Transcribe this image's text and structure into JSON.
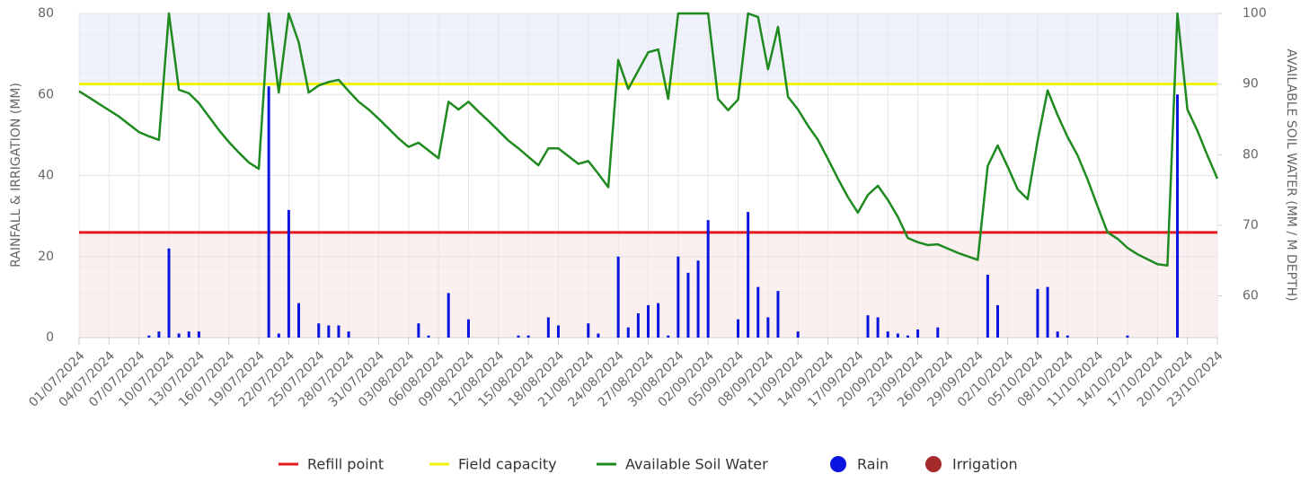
{
  "chart_data": {
    "type": "combo",
    "ylabel": "RAINFALL & IRRIGATION (MM)",
    "y2label": "AVAILABLE SOIL WATER (MM / M DEPTH)",
    "ylim": [
      0,
      80
    ],
    "yticks": [
      0,
      20,
      40,
      60,
      80
    ],
    "y2lim": [
      54.1,
      100
    ],
    "y2ticks": [
      60,
      70,
      80,
      90,
      100
    ],
    "grid": true,
    "legend": "bottom",
    "categories": [
      "01/07/2024",
      null,
      null,
      "04/07/2024",
      null,
      null,
      "07/07/2024",
      null,
      null,
      "10/07/2024",
      null,
      null,
      "13/07/2024",
      null,
      null,
      "16/07/2024",
      null,
      null,
      "19/07/2024",
      null,
      null,
      "22/07/2024",
      null,
      null,
      "25/07/2024",
      null,
      null,
      "28/07/2024",
      null,
      null,
      "31/07/2024",
      null,
      null,
      "03/08/2024",
      null,
      null,
      "06/08/2024",
      null,
      null,
      "09/08/2024",
      null,
      null,
      "12/08/2024",
      null,
      null,
      "15/08/2024",
      null,
      null,
      "18/08/2024",
      null,
      null,
      "21/08/2024",
      null,
      null,
      "24/08/2024",
      null,
      null,
      "27/08/2024",
      null,
      null,
      "30/08/2024",
      null,
      null,
      "02/09/2024",
      null,
      null,
      "05/09/2024",
      null,
      null,
      "08/09/2024",
      null,
      null,
      "11/09/2024",
      null,
      null,
      "14/09/2024",
      null,
      null,
      "17/09/2024",
      null,
      null,
      "20/09/2024",
      null,
      null,
      "23/09/2024",
      null,
      null,
      "26/09/2024",
      null,
      null,
      "29/09/2024",
      null,
      null,
      "02/10/2024",
      null,
      null,
      "05/10/2024",
      null,
      null,
      "08/10/2024",
      null,
      null,
      "11/10/2024",
      null,
      null,
      "14/10/2024",
      null,
      null,
      "17/10/2024",
      null,
      null,
      "20/10/2024",
      null,
      null,
      "23/10/2024"
    ],
    "reference_lines": [
      {
        "name": "Refill point",
        "value": 69,
        "axis": "y2",
        "color": "#e31a1c"
      },
      {
        "name": "Field capacity",
        "value": 90,
        "axis": "y2",
        "color": "#f2f20a"
      }
    ],
    "series": [
      {
        "name": "Available Soil Water",
        "type": "line",
        "axis": "y2",
        "color": "#1f8a1f",
        "values": [
          89,
          88.1,
          87.2,
          86.3,
          85.4,
          84.3,
          83.2,
          82.6,
          82.1,
          100,
          89.2,
          88.7,
          87.3,
          85.4,
          83.5,
          81.8,
          80.3,
          78.9,
          78,
          100,
          88.8,
          100,
          95.9,
          88.8,
          89.8,
          90.3,
          90.6,
          89,
          87.5,
          86.4,
          85.1,
          83.7,
          82.3,
          81.1,
          81.7,
          80.6,
          79.5,
          87.5,
          86.4,
          87.5,
          86.1,
          84.8,
          83.4,
          82,
          80.9,
          79.7,
          78.5,
          80.9,
          80.9,
          79.8,
          78.7,
          79.1,
          77.3,
          75.4,
          93.4,
          89.3,
          91.9,
          94.5,
          94.9,
          87.9,
          100,
          100,
          100,
          100,
          87.9,
          86.3,
          87.8,
          100,
          99.5,
          92.1,
          98.1,
          88.2,
          86.4,
          84.1,
          82.1,
          79.4,
          76.6,
          74,
          71.8,
          74.3,
          75.6,
          73.6,
          71.2,
          68.2,
          67.6,
          67.2,
          67.3,
          66.7,
          66.1,
          65.6,
          65.1,
          78.4,
          81.3,
          78.3,
          75.1,
          73.7,
          82,
          89.1,
          85.6,
          82.5,
          79.9,
          76.5,
          72.7,
          69,
          68.1,
          66.8,
          65.9,
          65.2,
          64.5,
          64.3,
          100,
          86.4,
          83.4,
          79.9,
          76.6
        ]
      },
      {
        "name": "Rain",
        "type": "bar",
        "axis": "y",
        "color": "#0a14e0",
        "values": [
          0,
          0,
          0,
          0,
          0,
          0,
          0,
          0.5,
          1.5,
          22,
          1,
          1.5,
          1.5,
          0,
          0,
          0,
          0,
          0,
          0,
          62,
          1,
          31.5,
          8.5,
          0,
          3.5,
          3,
          3,
          1.5,
          0,
          0,
          0,
          0,
          0,
          0,
          3.5,
          0.5,
          0,
          11,
          0,
          4.5,
          0,
          0,
          0,
          0,
          0.5,
          0.5,
          0,
          5,
          3,
          0,
          0,
          3.5,
          1,
          0,
          20,
          2.5,
          6,
          8,
          8.5,
          0.5,
          20,
          16,
          19,
          29,
          0,
          0,
          4.5,
          31,
          12.5,
          5,
          11.5,
          0,
          1.5,
          0,
          0,
          0,
          0,
          0,
          0,
          5.5,
          5,
          1.5,
          1,
          0.5,
          2,
          0,
          2.5,
          0,
          0,
          0,
          0,
          15.5,
          8,
          0,
          0,
          0,
          12,
          12.5,
          1.5,
          0.5,
          0,
          0,
          0,
          0,
          0,
          0.5,
          0,
          0,
          0,
          0,
          60,
          0,
          0,
          0,
          0
        ]
      },
      {
        "name": "Irrigation",
        "type": "bar",
        "axis": "y",
        "color": "#a52a2a",
        "values": [
          0,
          0,
          0,
          0,
          0,
          0,
          0,
          0,
          0,
          0,
          0,
          0,
          0,
          0,
          0,
          0,
          0,
          0,
          0,
          0,
          0,
          0,
          0,
          0,
          0,
          0,
          0,
          0,
          0,
          0,
          0,
          0,
          0,
          0,
          0,
          0,
          0,
          0,
          0,
          0,
          0,
          0,
          0,
          0,
          0,
          0,
          0,
          0,
          0,
          0,
          0,
          0,
          0,
          0,
          0,
          0,
          0,
          0,
          0,
          0,
          0,
          0,
          0,
          0,
          0,
          0,
          0,
          0,
          0,
          0,
          0,
          0,
          0,
          0,
          0,
          0,
          0,
          0,
          0,
          0,
          0,
          0,
          0,
          0,
          0,
          0,
          0,
          0,
          0,
          0,
          0,
          0,
          0,
          0,
          0,
          0,
          0,
          0,
          0,
          0,
          0,
          0,
          0,
          0,
          0,
          0,
          0,
          0,
          0,
          0,
          0,
          0,
          0,
          0,
          0
        ]
      }
    ]
  }
}
